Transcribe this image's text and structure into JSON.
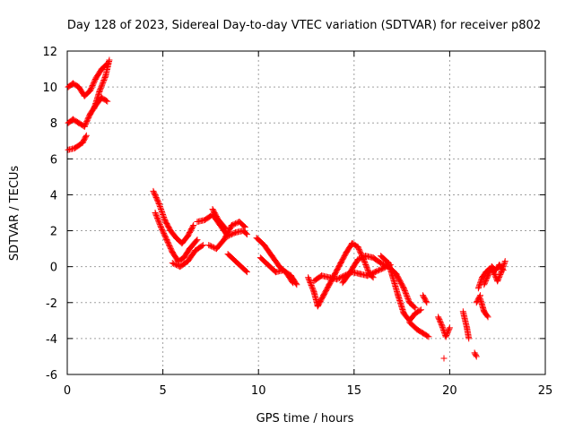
{
  "chart_data": {
    "type": "scatter",
    "title": "Day 128 of 2023, Sidereal Day-to-day VTEC variation (SDTVAR) for receiver p802",
    "xlabel": "GPS time / hours",
    "ylabel": "SDTVAR / TECUs",
    "xlim": [
      0,
      25
    ],
    "ylim": [
      -6,
      12
    ],
    "xticks": [
      0,
      5,
      10,
      15,
      20,
      25
    ],
    "yticks": [
      -6,
      -4,
      -2,
      0,
      2,
      4,
      6,
      8,
      10,
      12
    ],
    "xtick_labels": [
      "0",
      "5",
      "10",
      "15",
      "20",
      "25"
    ],
    "ytick_labels": [
      "-6",
      "-4",
      "-2",
      "0",
      "2",
      "4",
      "6",
      "8",
      "10",
      "12"
    ],
    "grid": true,
    "marker": "+",
    "color": "#ff0000",
    "series": [
      {
        "name": "SDTVAR",
        "tracks": [
          [
            [
              0.05,
              10.0
            ],
            [
              0.3,
              10.2
            ],
            [
              0.6,
              10.0
            ],
            [
              0.9,
              9.5
            ],
            [
              1.2,
              9.8
            ],
            [
              1.5,
              10.5
            ],
            [
              1.8,
              11.0
            ],
            [
              2.1,
              11.3
            ]
          ],
          [
            [
              0.05,
              8.0
            ],
            [
              0.3,
              8.2
            ],
            [
              0.6,
              8.0
            ],
            [
              0.9,
              7.8
            ],
            [
              1.2,
              8.5
            ],
            [
              1.5,
              9.0
            ],
            [
              1.8,
              9.4
            ],
            [
              2.1,
              9.2
            ]
          ],
          [
            [
              0.05,
              6.5
            ],
            [
              0.4,
              6.6
            ],
            [
              0.8,
              6.9
            ],
            [
              1.0,
              7.3
            ]
          ],
          [
            [
              1.4,
              8.8
            ],
            [
              1.7,
              9.8
            ],
            [
              2.0,
              10.6
            ],
            [
              2.2,
              11.5
            ]
          ],
          [
            [
              4.5,
              4.2
            ],
            [
              4.8,
              3.5
            ],
            [
              5.1,
              2.6
            ],
            [
              5.4,
              2.0
            ],
            [
              5.7,
              1.6
            ],
            [
              6.0,
              1.3
            ],
            [
              6.3,
              1.7
            ],
            [
              6.6,
              2.3
            ]
          ],
          [
            [
              4.6,
              3.0
            ],
            [
              4.9,
              2.2
            ],
            [
              5.2,
              1.5
            ],
            [
              5.5,
              0.8
            ],
            [
              5.8,
              0.3
            ],
            [
              6.1,
              0.5
            ],
            [
              6.4,
              1.0
            ],
            [
              6.8,
              1.5
            ]
          ],
          [
            [
              5.5,
              0.2
            ],
            [
              5.9,
              0.0
            ],
            [
              6.3,
              0.3
            ],
            [
              6.7,
              0.9
            ],
            [
              7.1,
              1.2
            ]
          ],
          [
            [
              6.8,
              2.5
            ],
            [
              7.2,
              2.6
            ],
            [
              7.6,
              2.9
            ],
            [
              8.0,
              2.3
            ],
            [
              8.4,
              1.7
            ],
            [
              8.8,
              1.9
            ],
            [
              9.2,
              2.0
            ]
          ],
          [
            [
              7.4,
              1.2
            ],
            [
              7.8,
              1.0
            ],
            [
              8.2,
              1.5
            ],
            [
              8.6,
              2.3
            ],
            [
              9.0,
              2.5
            ],
            [
              9.3,
              2.2
            ]
          ],
          [
            [
              7.6,
              3.2
            ],
            [
              7.9,
              2.6
            ],
            [
              8.3,
              2.1
            ]
          ],
          [
            [
              8.4,
              0.7
            ],
            [
              8.8,
              0.3
            ],
            [
              9.2,
              -0.1
            ],
            [
              9.4,
              -0.3
            ]
          ],
          [
            [
              9.2,
              2.0
            ],
            [
              9.4,
              1.8
            ]
          ],
          [
            [
              9.9,
              1.6
            ],
            [
              10.3,
              1.2
            ],
            [
              10.7,
              0.6
            ],
            [
              11.1,
              0.0
            ],
            [
              11.5,
              -0.4
            ],
            [
              11.8,
              -0.9
            ]
          ],
          [
            [
              10.1,
              0.5
            ],
            [
              10.5,
              0.1
            ],
            [
              10.9,
              -0.3
            ],
            [
              11.3,
              -0.2
            ],
            [
              11.7,
              -0.5
            ],
            [
              12.0,
              -1.0
            ]
          ],
          [
            [
              12.6,
              -0.6
            ],
            [
              12.9,
              -1.4
            ],
            [
              13.1,
              -2.2
            ],
            [
              13.4,
              -1.6
            ],
            [
              13.7,
              -1.0
            ],
            [
              14.0,
              -0.4
            ],
            [
              14.3,
              0.2
            ],
            [
              14.6,
              0.8
            ],
            [
              14.9,
              1.3
            ],
            [
              15.2,
              1.1
            ],
            [
              15.5,
              0.4
            ],
            [
              15.8,
              -0.4
            ],
            [
              16.0,
              -0.6
            ]
          ],
          [
            [
              12.9,
              -0.8
            ],
            [
              13.3,
              -0.5
            ],
            [
              13.7,
              -0.6
            ],
            [
              14.1,
              -0.7
            ],
            [
              14.5,
              -0.5
            ],
            [
              14.9,
              -0.3
            ],
            [
              15.3,
              -0.4
            ],
            [
              15.7,
              -0.5
            ],
            [
              16.1,
              -0.3
            ],
            [
              16.5,
              -0.1
            ],
            [
              16.9,
              0.1
            ]
          ],
          [
            [
              14.4,
              -0.9
            ],
            [
              14.8,
              -0.3
            ],
            [
              15.2,
              0.4
            ],
            [
              15.6,
              0.6
            ],
            [
              16.0,
              0.5
            ],
            [
              16.4,
              0.2
            ],
            [
              16.8,
              0.0
            ],
            [
              17.2,
              -0.4
            ],
            [
              17.6,
              -1.2
            ],
            [
              17.9,
              -2.0
            ],
            [
              18.2,
              -2.3
            ]
          ],
          [
            [
              16.4,
              0.6
            ],
            [
              16.8,
              0.2
            ],
            [
              17.0,
              -0.5
            ],
            [
              17.3,
              -1.6
            ],
            [
              17.6,
              -2.6
            ],
            [
              17.9,
              -3.0
            ],
            [
              18.2,
              -2.6
            ],
            [
              18.5,
              -2.4
            ]
          ],
          [
            [
              17.9,
              -3.1
            ],
            [
              18.3,
              -3.5
            ],
            [
              18.6,
              -3.7
            ],
            [
              18.9,
              -3.9
            ]
          ],
          [
            [
              18.6,
              -1.6
            ],
            [
              18.8,
              -2.0
            ]
          ],
          [
            [
              19.4,
              -2.8
            ],
            [
              19.6,
              -3.3
            ],
            [
              19.8,
              -3.9
            ],
            [
              20.0,
              -3.4
            ]
          ],
          [
            [
              19.7,
              -5.1
            ]
          ],
          [
            [
              20.7,
              -2.5
            ],
            [
              20.9,
              -3.4
            ],
            [
              21.0,
              -4.0
            ]
          ],
          [
            [
              21.3,
              -4.8
            ],
            [
              21.4,
              -5.0
            ]
          ],
          [
            [
              21.6,
              -1.8
            ],
            [
              21.8,
              -2.5
            ],
            [
              22.0,
              -2.8
            ]
          ],
          [
            [
              21.5,
              -1.2
            ],
            [
              21.7,
              -0.6
            ],
            [
              21.9,
              -0.3
            ],
            [
              22.1,
              -0.1
            ],
            [
              22.3,
              -0.3
            ],
            [
              22.5,
              -0.8
            ],
            [
              22.7,
              -0.3
            ],
            [
              22.9,
              0.3
            ]
          ],
          [
            [
              21.8,
              -1.0
            ],
            [
              22.0,
              -0.5
            ],
            [
              22.2,
              0.0
            ],
            [
              22.4,
              -0.2
            ],
            [
              22.6,
              0.1
            ],
            [
              22.8,
              -0.2
            ]
          ],
          [
            [
              21.4,
              -2.0
            ],
            [
              21.6,
              -1.6
            ]
          ]
        ]
      }
    ]
  }
}
